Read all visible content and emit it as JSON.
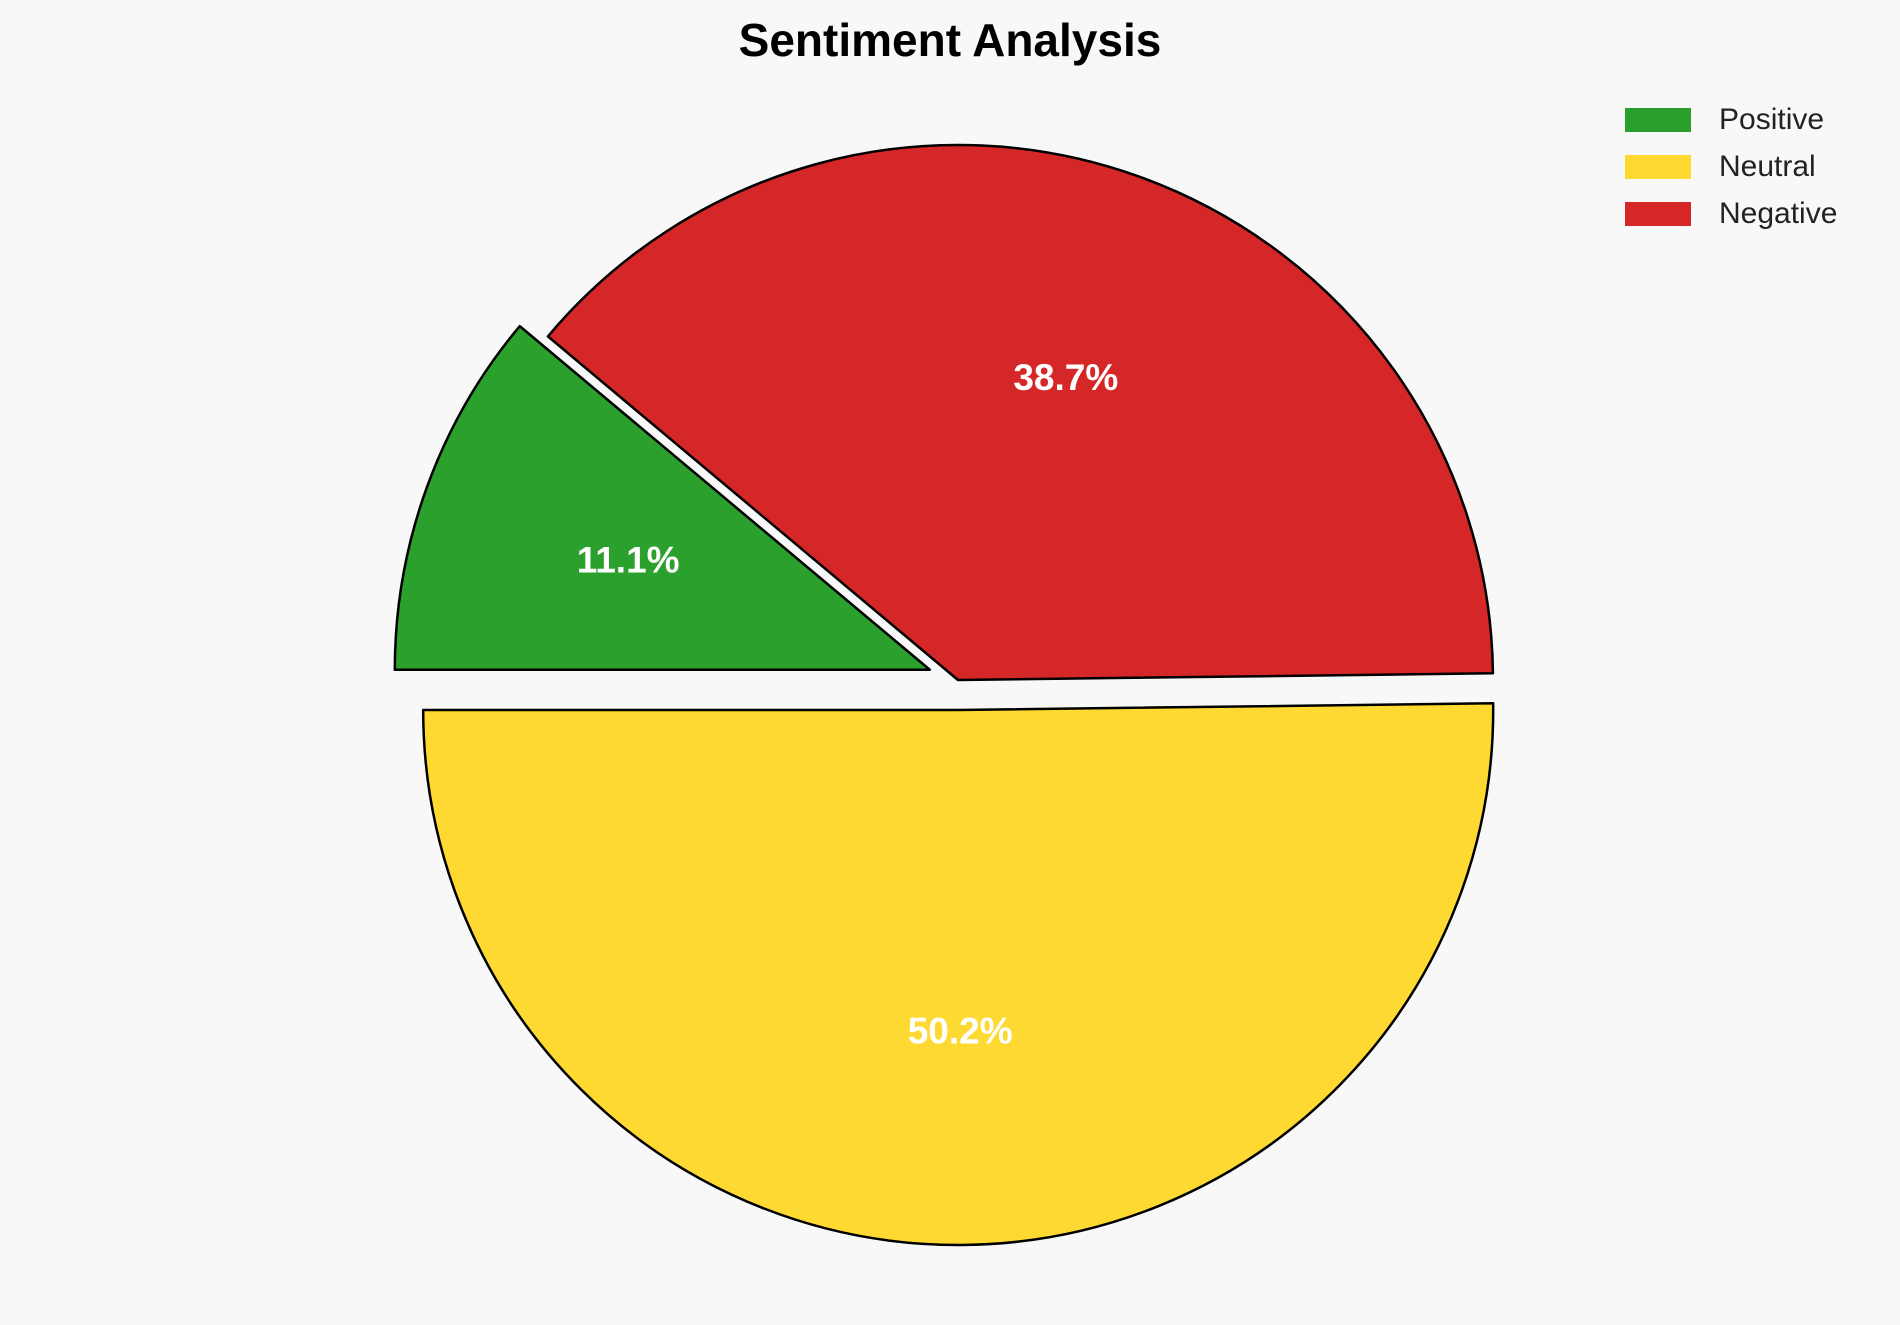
{
  "chart_data": {
    "type": "pie",
    "title": "Sentiment Analysis",
    "slices": [
      {
        "name": "Positive",
        "value": 11.1,
        "label": "11.1%",
        "color": "#2ca02c"
      },
      {
        "name": "Neutral",
        "value": 50.2,
        "label": "50.2%",
        "color": "#fdd931"
      },
      {
        "name": "Negative",
        "value": 38.7,
        "label": "38.7%",
        "color": "#d62728"
      }
    ],
    "legend_placement": "top-right"
  }
}
